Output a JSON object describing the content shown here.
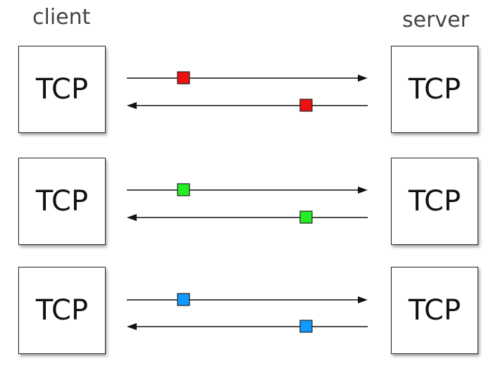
{
  "labels": {
    "client": "client",
    "server": "server"
  },
  "connections": [
    {
      "client_box": "TCP",
      "server_box": "TCP",
      "packet_color": "#ee1111"
    },
    {
      "client_box": "TCP",
      "server_box": "TCP",
      "packet_color": "#22ee22"
    },
    {
      "client_box": "TCP",
      "server_box": "TCP",
      "packet_color": "#1199ff"
    }
  ]
}
